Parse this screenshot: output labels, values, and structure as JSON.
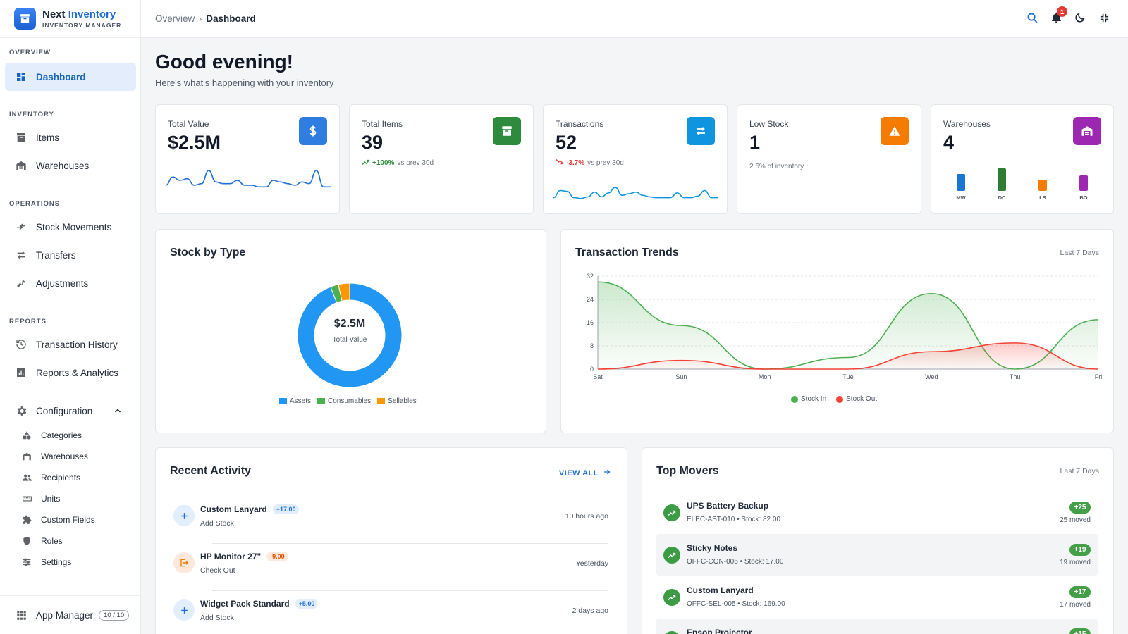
{
  "brand": {
    "title_a": "Next",
    "title_b": "Inventory",
    "subtitle": "INVENTORY MANAGER",
    "accent": "#1e6fd9"
  },
  "sidebar": {
    "sections": {
      "overview": "OVERVIEW",
      "inventory": "INVENTORY",
      "operations": "OPERATIONS",
      "reports": "REPORTS"
    },
    "items": {
      "dashboard": "Dashboard",
      "items": "Items",
      "warehouses": "Warehouses",
      "stock_movements": "Stock Movements",
      "transfers": "Transfers",
      "adjustments": "Adjustments",
      "transaction_history": "Transaction History",
      "reports_analytics": "Reports & Analytics",
      "configuration": "Configuration"
    },
    "config_sub": [
      "Categories",
      "Warehouses",
      "Recipients",
      "Units",
      "Custom Fields",
      "Roles",
      "Settings"
    ],
    "app_manager": {
      "label": "App Manager",
      "count": "10 / 10"
    }
  },
  "topbar": {
    "crumb_parent": "Overview",
    "crumb_sep": "›",
    "crumb_current": "Dashboard",
    "notifications": "1"
  },
  "greeting": {
    "title": "Good evening!",
    "subtitle": "Here's what's happening with your inventory"
  },
  "stats": {
    "total_value": {
      "label": "Total Value",
      "value": "$2.5M",
      "color": "#2f7de1",
      "spark": [
        3,
        8,
        6,
        7,
        3,
        4,
        12,
        5,
        4,
        4,
        6,
        3,
        3,
        2,
        2,
        6,
        5,
        4,
        3,
        5,
        4,
        12,
        2,
        2
      ]
    },
    "total_items": {
      "label": "Total Items",
      "value": "39",
      "trend": "+100%",
      "trend_note": "vs prev 30d",
      "color": "#2e8b3e",
      "trend_color": "#2e8b3e"
    },
    "transactions": {
      "label": "Transactions",
      "value": "52",
      "trend": "-3.7%",
      "trend_note": "vs prev 30d",
      "color": "#0f95e0",
      "trend_color": "#e53935",
      "spark": [
        3,
        12,
        11,
        3,
        2,
        4,
        10,
        4,
        9,
        16,
        6,
        8,
        10,
        6,
        4,
        3,
        3,
        3,
        9,
        3,
        3,
        5,
        12,
        3,
        3
      ]
    },
    "low_stock": {
      "label": "Low Stock",
      "value": "1",
      "note": "2.6% of inventory",
      "color": "#f57c00"
    },
    "warehouses": {
      "label": "Warehouses",
      "value": "4",
      "color": "#9c27b0",
      "bars": [
        {
          "label": "MW",
          "value": 24,
          "color": "#1976d2"
        },
        {
          "label": "DC",
          "value": 32,
          "color": "#2e7d32"
        },
        {
          "label": "LS",
          "value": 16,
          "color": "#f57c00"
        },
        {
          "label": "BO",
          "value": 22,
          "color": "#9c27b0"
        }
      ]
    }
  },
  "stock_by_type": {
    "title": "Stock by Type",
    "center_value": "$2.5M",
    "center_label": "Total Value",
    "chart_data": {
      "type": "pie",
      "labels": [
        "Assets",
        "Consumables",
        "Sellables"
      ],
      "values": [
        94,
        2.5,
        3.5
      ],
      "colors": [
        "#2196f3",
        "#4caf50",
        "#ff9800"
      ]
    }
  },
  "transaction_trends": {
    "title": "Transaction Trends",
    "period": "Last 7 Days",
    "chart_data": {
      "type": "area",
      "categories": [
        "Sat",
        "Sun",
        "Mon",
        "Tue",
        "Wed",
        "Thu",
        "Fri"
      ],
      "yticks": [
        0,
        8,
        16,
        24,
        32
      ],
      "ylim": [
        0,
        32
      ],
      "series": [
        {
          "name": "Stock In",
          "values": [
            30,
            15,
            0,
            4,
            26,
            0,
            17
          ],
          "color": "#4caf50"
        },
        {
          "name": "Stock Out",
          "values": [
            0,
            3,
            0,
            0,
            6,
            9,
            0
          ],
          "color": "#f44336"
        }
      ]
    }
  },
  "recent_activity": {
    "title": "Recent Activity",
    "view_all": "VIEW ALL",
    "items": [
      {
        "name": "Custom Lanyard",
        "qty": "+17.00",
        "type": "Add Stock",
        "time": "10 hours ago",
        "kind": "in"
      },
      {
        "name": "HP Monitor 27\"",
        "qty": "-9.00",
        "type": "Check Out",
        "time": "Yesterday",
        "kind": "out"
      },
      {
        "name": "Widget Pack Standard",
        "qty": "+5.00",
        "type": "Add Stock",
        "time": "2 days ago",
        "kind": "in"
      }
    ]
  },
  "top_movers": {
    "title": "Top Movers",
    "period": "Last 7 Days",
    "items": [
      {
        "name": "UPS Battery Backup",
        "sku": "ELEC-AST-010 • Stock: 82.00",
        "badge": "+25",
        "moved": "25 moved"
      },
      {
        "name": "Sticky Notes",
        "sku": "OFFC-CON-006 • Stock: 17.00",
        "badge": "+19",
        "moved": "19 moved"
      },
      {
        "name": "Custom Lanyard",
        "sku": "OFFC-SEL-005 • Stock: 169.00",
        "badge": "+17",
        "moved": "17 moved"
      },
      {
        "name": "Epson Projector",
        "sku": "",
        "badge": "+15",
        "moved": ""
      }
    ]
  }
}
